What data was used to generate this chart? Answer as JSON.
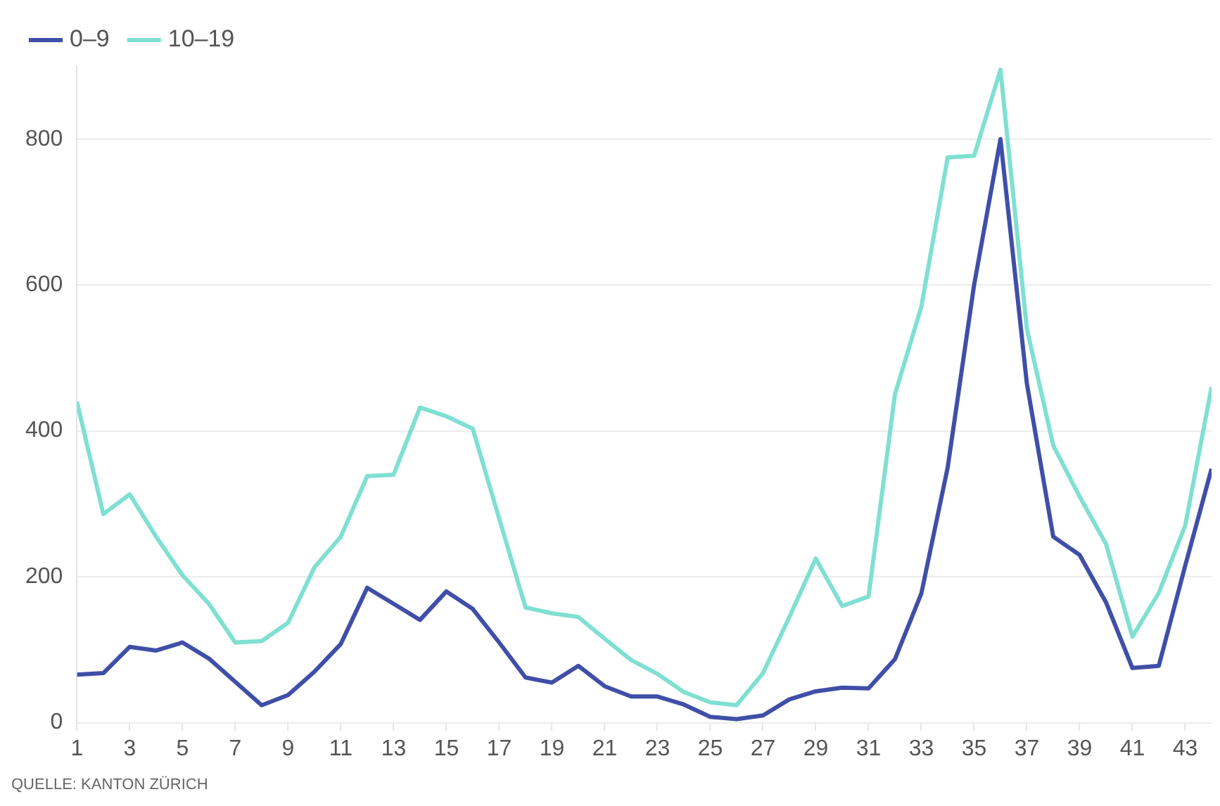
{
  "chart_data": {
    "type": "line",
    "x": [
      1,
      2,
      3,
      4,
      5,
      6,
      7,
      8,
      9,
      10,
      11,
      12,
      13,
      14,
      15,
      16,
      17,
      18,
      19,
      20,
      21,
      22,
      23,
      24,
      25,
      26,
      27,
      28,
      29,
      30,
      31,
      32,
      33,
      34,
      35,
      36,
      37,
      38,
      39,
      40,
      41,
      42,
      43,
      44
    ],
    "series": [
      {
        "name": "0–9",
        "color": "#3f4fa8",
        "values": [
          66,
          68,
          104,
          99,
          110,
          88,
          56,
          24,
          38,
          70,
          108,
          185,
          163,
          141,
          180,
          156,
          110,
          62,
          55,
          78,
          50,
          36,
          36,
          25,
          8,
          5,
          10,
          32,
          43,
          48,
          47,
          87,
          177,
          350,
          600,
          800,
          465,
          255,
          230,
          165,
          75,
          78,
          215,
          348
        ]
      },
      {
        "name": "10–19",
        "color": "#7fe0d2",
        "values": [
          440,
          286,
          313,
          255,
          202,
          163,
          110,
          112,
          137,
          213,
          255,
          338,
          340,
          432,
          420,
          403,
          280,
          158,
          150,
          145,
          115,
          86,
          67,
          42,
          28,
          24,
          68,
          145,
          225,
          160,
          173,
          450,
          570,
          775,
          777,
          895,
          540,
          380,
          310,
          245,
          118,
          178,
          270,
          460
        ]
      }
    ],
    "xlim": [
      1,
      44
    ],
    "xticks": [
      1,
      3,
      5,
      7,
      9,
      11,
      13,
      15,
      17,
      19,
      21,
      23,
      25,
      27,
      29,
      31,
      33,
      35,
      37,
      39,
      41,
      43
    ],
    "ylim": [
      0,
      900
    ],
    "yticks": [
      0,
      200,
      400,
      600,
      800
    ],
    "grid": "y",
    "legend": "top left",
    "marker": "none",
    "line_style": "solid",
    "annotations": [
      "QUELLE: KANTON ZÜRICH"
    ]
  }
}
